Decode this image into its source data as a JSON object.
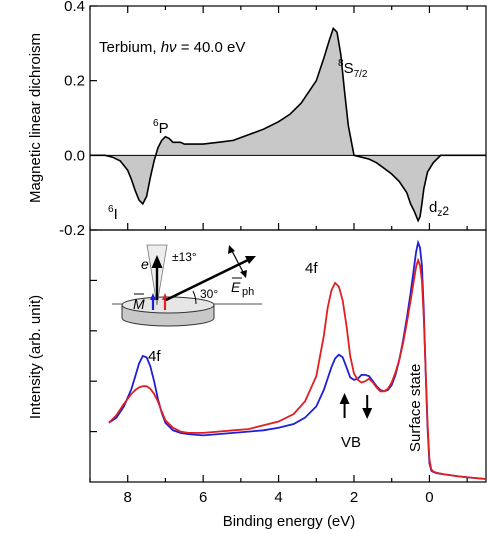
{
  "chart_data": [
    {
      "type": "area",
      "panel": "top",
      "ylabel": "Magnetic linear dichroism",
      "ylim": [
        -0.2,
        0.4
      ],
      "xlim": [
        9,
        -1.5
      ],
      "x_reversed": true,
      "yticks": [
        "0.4",
        "0.2",
        "0.0",
        "-0.2"
      ],
      "zero_line": true,
      "fill_color": "#c8c8c8",
      "line_color": "#000000",
      "annotation_main": "Terbium, hν = 40.0 eV",
      "peak_labels": [
        "6I",
        "6P",
        "8S7/2",
        "dz2"
      ],
      "series": [
        {
          "x": [
            9.0,
            8.6,
            8.4,
            8.2,
            8.0,
            7.9,
            7.8,
            7.7,
            7.6,
            7.5,
            7.4,
            7.3,
            7.2,
            7.1,
            7.0,
            6.9,
            6.8,
            6.7,
            6.6,
            6.5,
            6.3,
            6.0,
            5.6,
            5.2,
            4.8,
            4.4,
            4.0,
            3.7,
            3.4,
            3.2,
            3.0,
            2.8,
            2.65,
            2.55,
            2.45,
            2.35,
            2.25,
            2.15,
            2.0,
            1.8,
            1.6,
            1.4,
            1.2,
            1.0,
            0.8,
            0.6,
            0.5,
            0.4,
            0.3,
            0.25,
            0.2,
            0.15,
            0.05,
            -0.1,
            -0.3,
            -0.6,
            -1.0,
            -1.5
          ],
          "values": [
            0.0,
            0.0,
            -0.005,
            -0.015,
            -0.04,
            -0.065,
            -0.095,
            -0.12,
            -0.13,
            -0.11,
            -0.06,
            -0.015,
            0.02,
            0.04,
            0.05,
            0.045,
            0.035,
            0.035,
            0.035,
            0.03,
            0.03,
            0.03,
            0.035,
            0.04,
            0.055,
            0.07,
            0.09,
            0.11,
            0.14,
            0.17,
            0.2,
            0.26,
            0.31,
            0.34,
            0.33,
            0.27,
            0.17,
            0.08,
            0.0,
            -0.005,
            -0.01,
            -0.02,
            -0.035,
            -0.05,
            -0.07,
            -0.1,
            -0.13,
            -0.15,
            -0.175,
            -0.165,
            -0.13,
            -0.09,
            -0.045,
            -0.02,
            0.0,
            0.0,
            0.0,
            0.0
          ]
        }
      ]
    },
    {
      "type": "line",
      "panel": "bottom",
      "xlabel": "Binding energy (eV)",
      "ylabel": "Intensity (arb. unit)",
      "xlim": [
        9,
        -1.5
      ],
      "x_reversed": true,
      "xticks": [
        "8",
        "6",
        "4",
        "2",
        "0"
      ],
      "y_hidden_scale": [
        0,
        10
      ],
      "text_labels": [
        "4f",
        "4f",
        "VB",
        "Surface state"
      ],
      "series": [
        {
          "color": "#1f1fd6",
          "x": [
            8.5,
            8.3,
            8.1,
            7.9,
            7.8,
            7.7,
            7.6,
            7.5,
            7.4,
            7.3,
            7.2,
            7.1,
            7.0,
            6.8,
            6.6,
            6.4,
            6.0,
            5.6,
            5.2,
            4.8,
            4.4,
            4.0,
            3.6,
            3.3,
            3.0,
            2.8,
            2.6,
            2.5,
            2.4,
            2.3,
            2.2,
            2.1,
            2.0,
            1.9,
            1.8,
            1.7,
            1.6,
            1.5,
            1.4,
            1.3,
            1.2,
            1.1,
            1.0,
            0.9,
            0.8,
            0.7,
            0.6,
            0.5,
            0.4,
            0.35,
            0.3,
            0.25,
            0.2,
            0.15,
            0.1,
            0.05,
            0.0,
            -0.05,
            -0.1,
            -0.2,
            -0.4,
            -0.8,
            -1.2,
            -1.5
          ],
          "values": [
            2.35,
            2.55,
            3.0,
            3.7,
            4.2,
            4.7,
            5.0,
            4.95,
            4.6,
            4.0,
            3.3,
            2.75,
            2.35,
            2.05,
            1.95,
            1.9,
            1.85,
            1.9,
            1.95,
            2.0,
            2.05,
            2.15,
            2.3,
            2.55,
            3.0,
            3.65,
            4.55,
            4.9,
            5.05,
            4.95,
            4.55,
            4.15,
            4.05,
            4.1,
            4.25,
            4.25,
            4.2,
            4.0,
            3.8,
            3.65,
            3.6,
            3.65,
            3.85,
            4.25,
            4.85,
            5.6,
            6.5,
            7.5,
            8.6,
            9.15,
            9.5,
            9.3,
            8.6,
            6.8,
            4.3,
            2.2,
            0.75,
            0.45,
            0.4,
            0.35,
            0.3,
            0.22,
            0.16,
            0.12
          ]
        },
        {
          "color": "#e02020",
          "x": [
            8.5,
            8.3,
            8.1,
            7.9,
            7.8,
            7.7,
            7.6,
            7.5,
            7.4,
            7.3,
            7.2,
            7.1,
            7.0,
            6.8,
            6.6,
            6.4,
            6.0,
            5.6,
            5.2,
            4.8,
            4.4,
            4.0,
            3.6,
            3.3,
            3.0,
            2.8,
            2.7,
            2.6,
            2.5,
            2.4,
            2.3,
            2.2,
            2.1,
            2.0,
            1.9,
            1.8,
            1.7,
            1.6,
            1.5,
            1.4,
            1.3,
            1.2,
            1.1,
            1.0,
            0.9,
            0.8,
            0.7,
            0.6,
            0.5,
            0.4,
            0.35,
            0.3,
            0.25,
            0.2,
            0.15,
            0.1,
            0.05,
            0.0,
            -0.05,
            -0.1,
            -0.2,
            -0.4,
            -0.8,
            -1.2,
            -1.5
          ],
          "values": [
            2.35,
            2.65,
            3.1,
            3.5,
            3.65,
            3.75,
            3.8,
            3.8,
            3.7,
            3.5,
            3.2,
            2.8,
            2.45,
            2.15,
            2.0,
            1.95,
            1.95,
            2.0,
            2.05,
            2.1,
            2.25,
            2.4,
            2.7,
            3.2,
            4.2,
            5.8,
            6.9,
            7.6,
            7.9,
            7.75,
            7.2,
            6.2,
            5.0,
            4.3,
            4.05,
            3.95,
            4.0,
            4.1,
            3.95,
            3.75,
            3.6,
            3.6,
            3.7,
            3.95,
            4.35,
            4.85,
            5.5,
            6.3,
            7.2,
            8.1,
            8.55,
            8.8,
            8.6,
            8.0,
            6.5,
            4.4,
            2.4,
            0.9,
            0.5,
            0.42,
            0.36,
            0.3,
            0.22,
            0.16,
            0.12
          ]
        }
      ]
    }
  ],
  "inset": {
    "label_e": "e",
    "label_angle": "±13°",
    "label_30": "30°",
    "label_M": "M",
    "label_E": "E",
    "label_ph": "ph"
  },
  "arrows": {
    "vb_up_x": 2.25,
    "vb_down_x": 1.65
  }
}
